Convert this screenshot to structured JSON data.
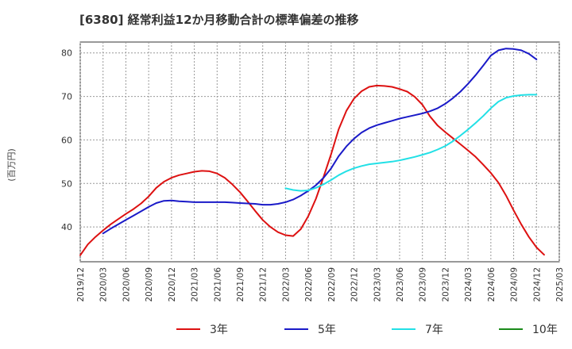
{
  "chart_data": {
    "type": "line",
    "title": "[6380]  経常利益12か月移動合計の標準偏差の推移",
    "ylabel": "(百万円)",
    "xlabel": "",
    "ylim": [
      32,
      82.5
    ],
    "xlim": [
      "2019-12",
      "2025-03"
    ],
    "yticks": [
      "40",
      "50",
      "60",
      "70",
      "80"
    ],
    "xticks": [
      "2019/12",
      "2020/03",
      "2020/06",
      "2020/09",
      "2020/12",
      "2021/03",
      "2021/06",
      "2021/09",
      "2021/12",
      "2022/03",
      "2022/06",
      "2022/09",
      "2022/12",
      "2023/03",
      "2023/06",
      "2023/09",
      "2023/12",
      "2024/03",
      "2024/06",
      "2024/09",
      "2024/12",
      "2025/03"
    ],
    "grid": true,
    "legend_position": "bottom",
    "series": [
      {
        "name": "3年",
        "color": "#dd1111",
        "points": [
          [
            "2019-12",
            33.5
          ],
          [
            "2020-01",
            36.0
          ],
          [
            "2020-02",
            37.7
          ],
          [
            "2020-03",
            39.2
          ],
          [
            "2020-04",
            40.6
          ],
          [
            "2020-05",
            41.8
          ],
          [
            "2020-06",
            43.0
          ],
          [
            "2020-07",
            44.1
          ],
          [
            "2020-08",
            45.4
          ],
          [
            "2020-09",
            47.0
          ],
          [
            "2020-10",
            49.0
          ],
          [
            "2020-11",
            50.4
          ],
          [
            "2020-12",
            51.3
          ],
          [
            "2021-01",
            51.9
          ],
          [
            "2021-02",
            52.3
          ],
          [
            "2021-03",
            52.7
          ],
          [
            "2021-04",
            52.9
          ],
          [
            "2021-05",
            52.8
          ],
          [
            "2021-06",
            52.3
          ],
          [
            "2021-07",
            51.3
          ],
          [
            "2021-08",
            49.8
          ],
          [
            "2021-09",
            48.0
          ],
          [
            "2021-10",
            45.9
          ],
          [
            "2021-11",
            43.7
          ],
          [
            "2021-12",
            41.6
          ],
          [
            "2022-01",
            40.0
          ],
          [
            "2022-02",
            38.8
          ],
          [
            "2022-03",
            38.1
          ],
          [
            "2022-04",
            37.9
          ],
          [
            "2022-05",
            39.5
          ],
          [
            "2022-06",
            42.5
          ],
          [
            "2022-07",
            46.5
          ],
          [
            "2022-08",
            51.5
          ],
          [
            "2022-09",
            56.8
          ],
          [
            "2022-10",
            62.5
          ],
          [
            "2022-11",
            66.7
          ],
          [
            "2022-12",
            69.5
          ],
          [
            "2023-01",
            71.2
          ],
          [
            "2023-02",
            72.2
          ],
          [
            "2023-03",
            72.5
          ],
          [
            "2023-04",
            72.4
          ],
          [
            "2023-05",
            72.2
          ],
          [
            "2023-06",
            71.7
          ],
          [
            "2023-07",
            71.1
          ],
          [
            "2023-08",
            69.9
          ],
          [
            "2023-09",
            68.1
          ],
          [
            "2023-10",
            65.4
          ],
          [
            "2023-11",
            63.3
          ],
          [
            "2023-12",
            61.8
          ],
          [
            "2024-01",
            60.4
          ],
          [
            "2024-02",
            59.0
          ],
          [
            "2024-03",
            57.6
          ],
          [
            "2024-04",
            56.1
          ],
          [
            "2024-05",
            54.3
          ],
          [
            "2024-06",
            52.4
          ],
          [
            "2024-07",
            50.2
          ],
          [
            "2024-08",
            47.2
          ],
          [
            "2024-09",
            43.8
          ],
          [
            "2024-10",
            40.6
          ],
          [
            "2024-11",
            37.7
          ],
          [
            "2024-12",
            35.3
          ],
          [
            "2025-01",
            33.6
          ]
        ]
      },
      {
        "name": "5年",
        "color": "#1a1ac8",
        "points": [
          [
            "2020-03",
            38.5
          ],
          [
            "2020-04",
            39.6
          ],
          [
            "2020-05",
            40.6
          ],
          [
            "2020-06",
            41.6
          ],
          [
            "2020-07",
            42.6
          ],
          [
            "2020-08",
            43.6
          ],
          [
            "2020-09",
            44.6
          ],
          [
            "2020-10",
            45.5
          ],
          [
            "2020-11",
            46.0
          ],
          [
            "2020-12",
            46.1
          ],
          [
            "2021-01",
            45.9
          ],
          [
            "2021-02",
            45.8
          ],
          [
            "2021-03",
            45.7
          ],
          [
            "2021-04",
            45.7
          ],
          [
            "2021-05",
            45.7
          ],
          [
            "2021-06",
            45.7
          ],
          [
            "2021-07",
            45.7
          ],
          [
            "2021-08",
            45.6
          ],
          [
            "2021-09",
            45.5
          ],
          [
            "2021-10",
            45.4
          ],
          [
            "2021-11",
            45.3
          ],
          [
            "2021-12",
            45.1
          ],
          [
            "2022-01",
            45.1
          ],
          [
            "2022-02",
            45.3
          ],
          [
            "2022-03",
            45.7
          ],
          [
            "2022-04",
            46.3
          ],
          [
            "2022-05",
            47.2
          ],
          [
            "2022-06",
            48.3
          ],
          [
            "2022-07",
            49.6
          ],
          [
            "2022-08",
            51.3
          ],
          [
            "2022-09",
            53.5
          ],
          [
            "2022-10",
            56.3
          ],
          [
            "2022-11",
            58.5
          ],
          [
            "2022-12",
            60.3
          ],
          [
            "2023-01",
            61.7
          ],
          [
            "2023-02",
            62.7
          ],
          [
            "2023-03",
            63.4
          ],
          [
            "2023-04",
            63.9
          ],
          [
            "2023-05",
            64.4
          ],
          [
            "2023-06",
            64.9
          ],
          [
            "2023-07",
            65.3
          ],
          [
            "2023-08",
            65.7
          ],
          [
            "2023-09",
            66.1
          ],
          [
            "2023-10",
            66.6
          ],
          [
            "2023-11",
            67.3
          ],
          [
            "2023-12",
            68.3
          ],
          [
            "2024-01",
            69.6
          ],
          [
            "2024-02",
            71.1
          ],
          [
            "2024-03",
            72.9
          ],
          [
            "2024-04",
            74.9
          ],
          [
            "2024-05",
            77.1
          ],
          [
            "2024-06",
            79.4
          ],
          [
            "2024-07",
            80.6
          ],
          [
            "2024-08",
            81.0
          ],
          [
            "2024-09",
            80.9
          ],
          [
            "2024-10",
            80.6
          ],
          [
            "2024-11",
            79.8
          ],
          [
            "2024-12",
            78.5
          ]
        ]
      },
      {
        "name": "7年",
        "color": "#22e0e6",
        "points": [
          [
            "2022-03",
            48.9
          ],
          [
            "2022-04",
            48.5
          ],
          [
            "2022-05",
            48.3
          ],
          [
            "2022-06",
            48.4
          ],
          [
            "2022-07",
            49.0
          ],
          [
            "2022-08",
            49.8
          ],
          [
            "2022-09",
            50.8
          ],
          [
            "2022-10",
            51.9
          ],
          [
            "2022-11",
            52.8
          ],
          [
            "2022-12",
            53.5
          ],
          [
            "2023-01",
            54.0
          ],
          [
            "2023-02",
            54.4
          ],
          [
            "2023-03",
            54.6
          ],
          [
            "2023-04",
            54.8
          ],
          [
            "2023-05",
            55.0
          ],
          [
            "2023-06",
            55.3
          ],
          [
            "2023-07",
            55.7
          ],
          [
            "2023-08",
            56.1
          ],
          [
            "2023-09",
            56.6
          ],
          [
            "2023-10",
            57.1
          ],
          [
            "2023-11",
            57.8
          ],
          [
            "2023-12",
            58.6
          ],
          [
            "2024-01",
            59.7
          ],
          [
            "2024-02",
            61.0
          ],
          [
            "2024-03",
            62.4
          ],
          [
            "2024-04",
            63.9
          ],
          [
            "2024-05",
            65.5
          ],
          [
            "2024-06",
            67.3
          ],
          [
            "2024-07",
            68.8
          ],
          [
            "2024-08",
            69.7
          ],
          [
            "2024-09",
            70.1
          ],
          [
            "2024-10",
            70.3
          ],
          [
            "2024-11",
            70.4
          ],
          [
            "2024-12",
            70.4
          ]
        ]
      },
      {
        "name": "10年",
        "color": "#1a8a1a",
        "points": []
      }
    ]
  }
}
